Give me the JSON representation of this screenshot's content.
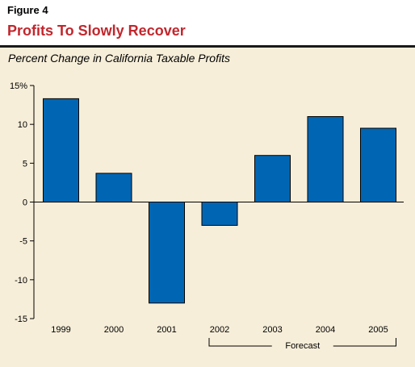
{
  "figure": {
    "label": "Figure 4",
    "title": "Profits To Slowly Recover",
    "subtitle": "Percent Change in California Taxable Profits"
  },
  "colors": {
    "title": "#c1272d",
    "bar": "#0066b3",
    "background": "#f7eed9"
  },
  "chart_data": {
    "type": "bar",
    "title": "",
    "xlabel": "",
    "ylabel": "",
    "categories": [
      "1999",
      "2000",
      "2001",
      "2002",
      "2003",
      "2004",
      "2005"
    ],
    "values": [
      13.3,
      3.7,
      -13,
      -3,
      6,
      11,
      9.5
    ],
    "ylim": [
      -15,
      15
    ],
    "yticks": [
      15,
      10,
      5,
      0,
      -5,
      -10,
      -15
    ],
    "ytick_labels": [
      "15%",
      "10",
      "5",
      "0",
      "-5",
      "-10",
      "-15"
    ],
    "grid": false,
    "annotations": [
      {
        "text": "Forecast",
        "spans": [
          "2002",
          "2005"
        ]
      }
    ]
  }
}
